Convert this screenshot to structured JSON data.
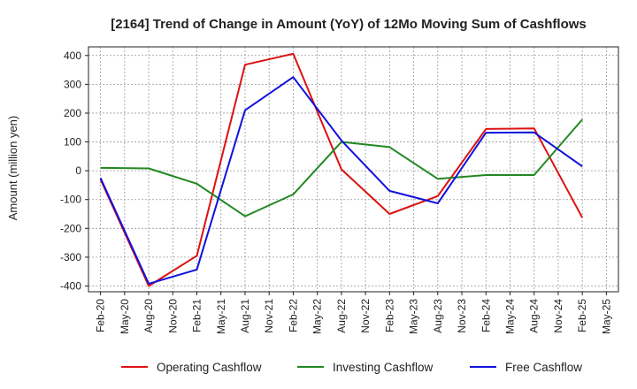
{
  "chart_data": {
    "type": "line",
    "title": "[2164]  Trend of Change in Amount (YoY) of 12Mo Moving Sum of Cashflows",
    "xlabel": "",
    "ylabel": "Amount (million yen)",
    "ylim": [
      -420,
      430
    ],
    "yticks": [
      400,
      300,
      200,
      100,
      0,
      -100,
      -200,
      -300,
      -400
    ],
    "categories": [
      "Feb-20",
      "May-20",
      "Aug-20",
      "Nov-20",
      "Feb-21",
      "May-21",
      "Aug-21",
      "Nov-21",
      "Feb-22",
      "May-22",
      "Aug-22",
      "Nov-22",
      "Feb-23",
      "May-23",
      "Aug-23",
      "Nov-23",
      "Feb-24",
      "May-24",
      "Aug-24",
      "Nov-24",
      "Feb-25",
      "May-25"
    ],
    "grid": true,
    "legend_position": "bottom",
    "series": [
      {
        "name": "Operating Cashflow",
        "color": "#dd1111",
        "values": [
          -30,
          null,
          -400,
          null,
          -295,
          null,
          368,
          null,
          406,
          null,
          5,
          null,
          -150,
          null,
          -88,
          null,
          145,
          null,
          147,
          null,
          -163,
          null
        ]
      },
      {
        "name": "Investing Cashflow",
        "color": "#228822",
        "values": [
          10,
          null,
          8,
          null,
          -45,
          null,
          -158,
          null,
          -82,
          null,
          100,
          null,
          82,
          null,
          -28,
          null,
          -15,
          null,
          -15,
          null,
          178,
          null
        ]
      },
      {
        "name": "Free Cashflow",
        "color": "#1111dd",
        "values": [
          -25,
          null,
          -392,
          null,
          -343,
          null,
          210,
          null,
          325,
          null,
          105,
          null,
          -70,
          null,
          -113,
          null,
          132,
          null,
          133,
          null,
          15,
          null
        ]
      }
    ]
  }
}
